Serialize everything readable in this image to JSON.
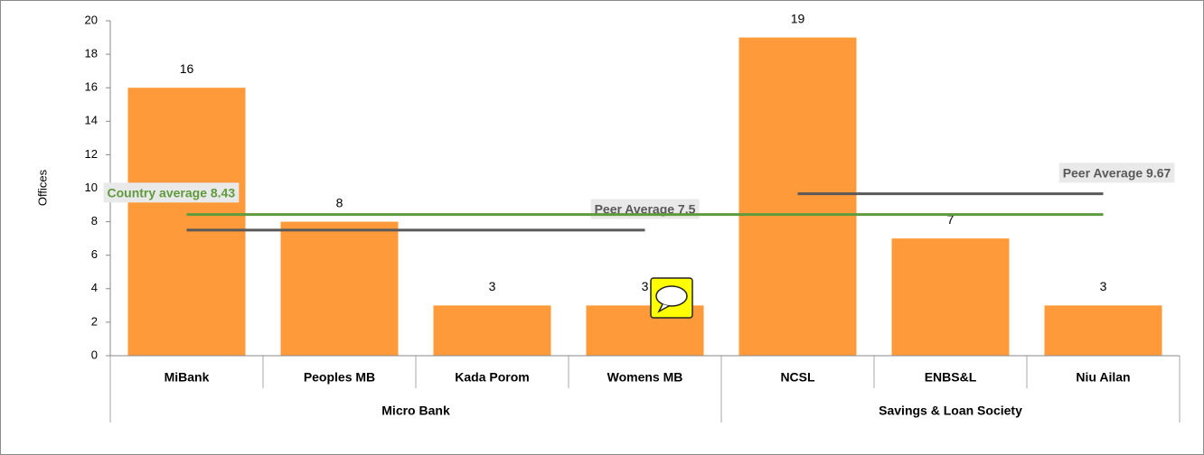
{
  "chart_data": {
    "type": "bar",
    "y_axis_label": "Offices",
    "categories": [
      "MiBank",
      "Peoples MB",
      "Kada Porom",
      "Womens MB",
      "NCSL",
      "ENBS&L",
      "Niu Ailan"
    ],
    "values": [
      16,
      8,
      3,
      3,
      19,
      7,
      3
    ],
    "color": "#ff9a3a",
    "ylim": [
      0,
      20
    ],
    "yticks": [
      0,
      2,
      4,
      6,
      8,
      10,
      12,
      14,
      16,
      18,
      20
    ],
    "groups": [
      {
        "name": "Micro Bank",
        "size": 4,
        "peer_average": {
          "label": "Peer Average 7.5",
          "value": 7.5,
          "color": "#595959"
        }
      },
      {
        "name": "Savings & Loan Society",
        "size": 3,
        "peer_average": {
          "label": "Peer Average 9.67",
          "value": 9.67,
          "color": "#595959"
        }
      }
    ],
    "country_average": {
      "label": "Country average 8.43",
      "value": 8.43,
      "color": "#5f9a3c"
    }
  }
}
